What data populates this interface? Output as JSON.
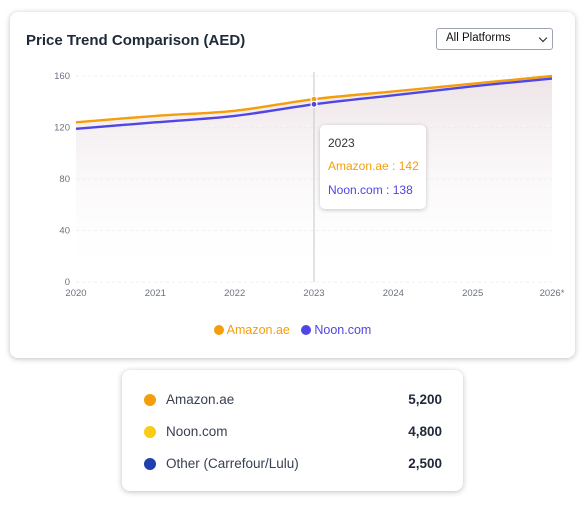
{
  "card": {
    "title": "Price Trend Comparison (AED)",
    "select_value": "All Platforms"
  },
  "chart_data": {
    "type": "line",
    "x": [
      "2020",
      "2021",
      "2022",
      "2023",
      "2024",
      "2025",
      "2026*"
    ],
    "series": [
      {
        "name": "Amazon.ae",
        "color": "#f59e0b",
        "values": [
          124,
          129,
          133,
          142,
          148,
          154,
          160
        ]
      },
      {
        "name": "Noon.com",
        "color": "#4f46e5",
        "values": [
          119,
          124,
          129,
          138,
          145,
          152,
          158
        ]
      }
    ],
    "ylim": [
      0,
      160
    ],
    "yticks": [
      "0",
      "40",
      "80",
      "120",
      "160"
    ],
    "grid": true,
    "legend": "bottom"
  },
  "tooltip": {
    "year": "2023",
    "rows": [
      {
        "name": "Amazon.ae",
        "value": "142",
        "color": "#f59e0b"
      },
      {
        "name": "Noon.com",
        "value": "138",
        "color": "#4f46e5"
      }
    ]
  },
  "stats": [
    {
      "name": "Amazon.ae",
      "value": "5,200",
      "color": "#f59e0b"
    },
    {
      "name": "Noon.com",
      "value": "4,800",
      "color": "#facc15"
    },
    {
      "name": "Other (Carrefour/Lulu)",
      "value": "2,500",
      "color": "#1e40af"
    }
  ]
}
